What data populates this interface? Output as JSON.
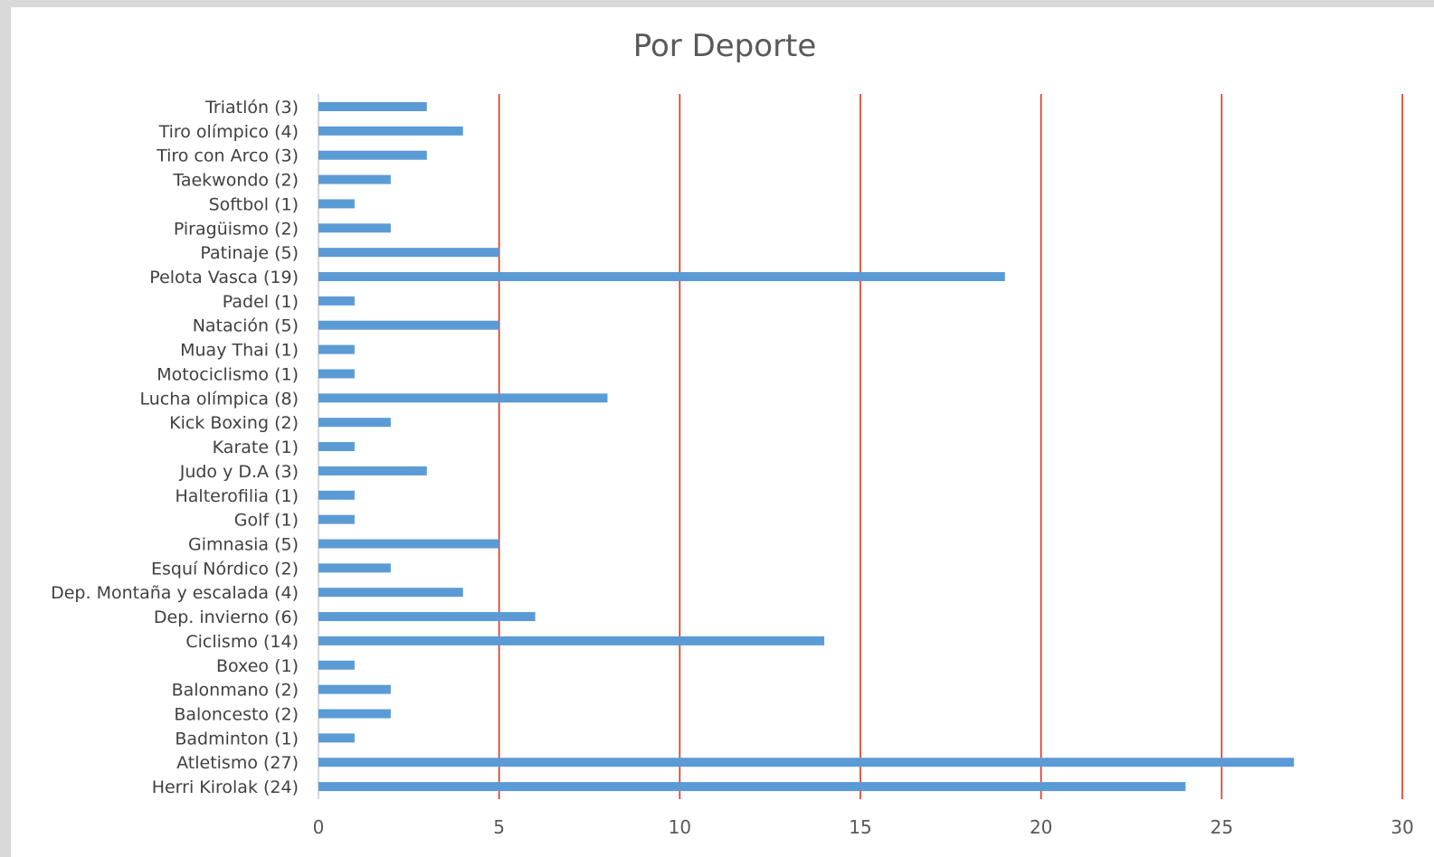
{
  "chart_data": {
    "type": "bar",
    "orientation": "horizontal",
    "title": "Por Deporte",
    "xlabel": "",
    "ylabel": "",
    "xlim": [
      0,
      30
    ],
    "xticks": [
      "0",
      "5",
      "10",
      "15",
      "20",
      "25",
      "30"
    ],
    "grid": true,
    "legend": "none",
    "colors": {
      "bar": "#5b9bd5",
      "gridline": "#e0301e",
      "axis": "#bfbfbf"
    },
    "categories": [
      "Triatlón (3)",
      "Tiro olímpico (4)",
      "Tiro con Arco (3)",
      "Taekwondo (2)",
      "Softbol (1)",
      "Piragüismo (2)",
      "Patinaje (5)",
      "Pelota Vasca (19)",
      "Padel (1)",
      "Natación (5)",
      "Muay Thai (1)",
      "Motociclismo (1)",
      "Lucha olímpica (8)",
      "Kick Boxing (2)",
      "Karate (1)",
      "Judo y D.A (3)",
      "Halterofilia (1)",
      "Golf (1)",
      "Gimnasia (5)",
      "Esquí Nórdico (2)",
      "Dep. Montaña y escalada (4)",
      "Dep. invierno (6)",
      "Ciclismo (14)",
      "Boxeo (1)",
      "Balonmano (2)",
      "Baloncesto (2)",
      "Badminton (1)",
      "Atletismo (27)",
      "Herri Kirolak (24)"
    ],
    "values": [
      3,
      4,
      3,
      2,
      1,
      2,
      5,
      19,
      1,
      5,
      1,
      1,
      8,
      2,
      1,
      3,
      1,
      1,
      5,
      2,
      4,
      6,
      14,
      1,
      2,
      2,
      1,
      27,
      24
    ]
  }
}
